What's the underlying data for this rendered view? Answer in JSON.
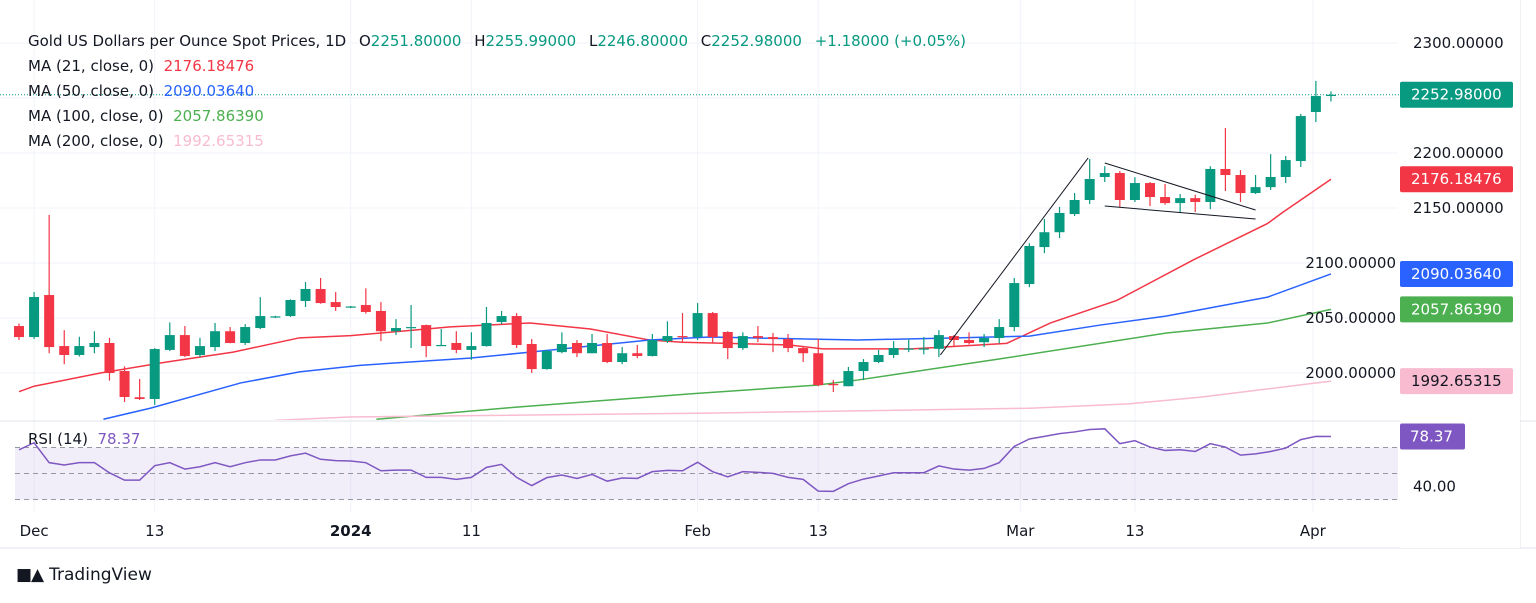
{
  "header": {
    "symbol": "Gold US Dollars per Ounce Spot Prices, 1D",
    "open_label": "O",
    "open": "2251.80000",
    "high_label": "H",
    "high": "2255.99000",
    "low_label": "L",
    "low": "2246.80000",
    "close_label": "C",
    "close": "2252.98000",
    "change": "+1.18000 (+0.05%)"
  },
  "indicators": [
    {
      "label": "MA (21, close, 0)",
      "value": "2176.18476",
      "color": "#f23645"
    },
    {
      "label": "MA (50, close, 0)",
      "value": "2090.03640",
      "color": "#2962ff"
    },
    {
      "label": "MA (100, close, 0)",
      "value": "2057.86390",
      "color": "#4caf50"
    },
    {
      "label": "MA (200, close, 0)",
      "value": "1992.65315",
      "color": "#f8bbd0"
    }
  ],
  "rsi": {
    "label": "RSI (14)",
    "value": "78.37",
    "color": "#7e57c2"
  },
  "price_tags": [
    {
      "text": "2252.98000",
      "value": 2252.98,
      "bg": "#089981",
      "fg": "#ffffff"
    },
    {
      "text": "2176.18476",
      "value": 2176.18476,
      "bg": "#f23645",
      "fg": "#ffffff"
    },
    {
      "text": "2090.03640",
      "value": 2090.0364,
      "bg": "#2962ff",
      "fg": "#ffffff"
    },
    {
      "text": "2057.86390",
      "value": 2057.8639,
      "bg": "#4caf50",
      "fg": "#ffffff"
    },
    {
      "text": "1992.65315",
      "value": 1992.65315,
      "bg": "#f8bbd0",
      "fg": "#131722"
    }
  ],
  "rsi_tag": {
    "text": "78.37",
    "value": 78.37,
    "bg": "#7e57c2"
  },
  "footer": {
    "brand": "TradingView",
    "logo_text": "TV"
  },
  "chart_data": {
    "type": "candlestick",
    "title": "Gold US Dollars per Ounce Spot Prices, 1D",
    "ylim": [
      1957.3,
      2339.1
    ],
    "grid": true,
    "colors": {
      "up": "#089981",
      "down": "#f23645",
      "last_price_line": "#089981"
    },
    "y_ticks": [
      {
        "value": 2300,
        "label": "2300.00000"
      },
      {
        "value": 2250,
        "label": ""
      },
      {
        "value": 2200,
        "label": "2200.00000"
      },
      {
        "value": 2150,
        "label": "2150.00000"
      },
      {
        "value": 2100,
        "label": "2100.00000"
      },
      {
        "value": 2050,
        "label": "2050.00000"
      },
      {
        "value": 2000,
        "label": "2000.00000"
      }
    ],
    "x_ticks": [
      {
        "bar": 1,
        "label": "Dec",
        "bold": false
      },
      {
        "bar": 9,
        "label": "13",
        "bold": false
      },
      {
        "bar": 22,
        "label": "2024",
        "bold": true
      },
      {
        "bar": 30,
        "label": "11",
        "bold": false
      },
      {
        "bar": 45,
        "label": "Feb",
        "bold": false
      },
      {
        "bar": 53,
        "label": "13",
        "bold": false
      },
      {
        "bar": 66.4,
        "label": "Mar",
        "bold": false
      },
      {
        "bar": 74,
        "label": "13",
        "bold": false
      },
      {
        "bar": 85.8,
        "label": "Apr",
        "bold": false
      }
    ],
    "ohlc_columns": [
      "open",
      "high",
      "low",
      "close"
    ],
    "candles": [
      [
        2042.7,
        2045,
        2030,
        2032.7
      ],
      [
        2032.7,
        2073.6,
        2031,
        2069.1
      ],
      [
        2070.9,
        2143.6,
        2018,
        2023.6
      ],
      [
        2024.5,
        2039,
        2008,
        2016.4
      ],
      [
        2016.4,
        2033,
        2015,
        2024.5
      ],
      [
        2023.6,
        2038,
        2018,
        2027.3
      ],
      [
        2027.3,
        2032,
        1993,
        2000
      ],
      [
        2001.8,
        2006,
        1973.6,
        1978.2
      ],
      [
        1978,
        1994.5,
        1975.5,
        1976.4
      ],
      [
        1976.4,
        2022.7,
        1971,
        2021.8
      ],
      [
        2021,
        2046,
        2020,
        2034.5
      ],
      [
        2034.5,
        2042.7,
        2014.5,
        2015.5
      ],
      [
        2016.4,
        2032,
        2014.5,
        2024.5
      ],
      [
        2023.6,
        2045.5,
        2020,
        2038
      ],
      [
        2038,
        2041.8,
        2027,
        2027.3
      ],
      [
        2027.3,
        2044.5,
        2025.5,
        2041.8
      ],
      [
        2040.9,
        2069,
        2040,
        2051.8
      ],
      [
        2050.9,
        2052,
        2050,
        2051.5
      ],
      [
        2051.8,
        2067,
        2051,
        2066.4
      ],
      [
        2065.5,
        2082.7,
        2060,
        2076.4
      ],
      [
        2076.4,
        2086.4,
        2063,
        2063.6
      ],
      [
        2064.5,
        2073.6,
        2056.4,
        2060
      ],
      [
        2060,
        2061,
        2059,
        2060.5
      ],
      [
        2061.8,
        2077,
        2054,
        2055.5
      ],
      [
        2056.4,
        2064.5,
        2029,
        2038
      ],
      [
        2038,
        2049,
        2034.5,
        2040.9
      ],
      [
        2041.8,
        2061.8,
        2022.7,
        2041.8
      ],
      [
        2043.6,
        2044,
        2014.5,
        2024.5
      ],
      [
        2025.5,
        2040,
        2025,
        2025.5
      ],
      [
        2027.3,
        2038,
        2018,
        2021
      ],
      [
        2021,
        2037,
        2012,
        2024.5
      ],
      [
        2024.5,
        2060,
        2024,
        2045.5
      ],
      [
        2046.4,
        2056.4,
        2044.5,
        2051.8
      ],
      [
        2051.8,
        2054.5,
        2022.7,
        2025.5
      ],
      [
        2026.4,
        2030.9,
        2000,
        2003.6
      ],
      [
        2003.6,
        2021,
        2003,
        2020
      ],
      [
        2019,
        2037,
        2018,
        2026.4
      ],
      [
        2027.3,
        2030,
        2014.5,
        2018
      ],
      [
        2018,
        2035.5,
        2018,
        2027.3
      ],
      [
        2027.3,
        2035.5,
        2009,
        2010
      ],
      [
        2010,
        2023.6,
        2008,
        2018
      ],
      [
        2018,
        2025.5,
        2013.6,
        2015.5
      ],
      [
        2015.5,
        2035.5,
        2015,
        2030
      ],
      [
        2029,
        2047,
        2027.3,
        2033.6
      ],
      [
        2033.6,
        2054.5,
        2028,
        2032.7
      ],
      [
        2032.7,
        2063.6,
        2030,
        2054.5
      ],
      [
        2054.5,
        2055.5,
        2027,
        2032.7
      ],
      [
        2037.3,
        2038,
        2012.7,
        2022.7
      ],
      [
        2022.7,
        2037,
        2021,
        2033.6
      ],
      [
        2033.6,
        2042.7,
        2028,
        2032
      ],
      [
        2032.7,
        2036.4,
        2019,
        2030.9
      ],
      [
        2030.9,
        2035.5,
        2019,
        2022.7
      ],
      [
        2022.7,
        2024.5,
        2010,
        2018
      ],
      [
        2018,
        2031,
        1988,
        1989
      ],
      [
        1990,
        1993.6,
        1982.7,
        1989
      ],
      [
        1988,
        2005.5,
        1988,
        2001.8
      ],
      [
        2001.8,
        2012.7,
        1993.6,
        2010
      ],
      [
        2010,
        2021,
        2009,
        2016.4
      ],
      [
        2016.4,
        2029,
        2013.6,
        2022.7
      ],
      [
        2022,
        2031,
        2019,
        2022.3
      ],
      [
        2022,
        2032.7,
        2017,
        2022.3
      ],
      [
        2022,
        2039,
        2014.5,
        2034.5
      ],
      [
        2033.6,
        2034.5,
        2023.6,
        2030
      ],
      [
        2030,
        2037,
        2026,
        2027.3
      ],
      [
        2028,
        2035.5,
        2023.6,
        2031.8
      ],
      [
        2031.8,
        2049,
        2027,
        2041.8
      ],
      [
        2041.8,
        2086.4,
        2038,
        2081.8
      ],
      [
        2080.9,
        2118,
        2078,
        2115.5
      ],
      [
        2114.5,
        2140,
        2109,
        2128
      ],
      [
        2128,
        2151,
        2122.7,
        2145.5
      ],
      [
        2144.5,
        2163.6,
        2142.7,
        2157.3
      ],
      [
        2157.3,
        2194.5,
        2153.6,
        2176.4
      ],
      [
        2178.2,
        2188,
        2173.6,
        2181.8
      ],
      [
        2181.8,
        2183.6,
        2151,
        2157.3
      ],
      [
        2157.3,
        2178,
        2155.5,
        2172.7
      ],
      [
        2172.7,
        2173.6,
        2151.8,
        2160
      ],
      [
        2160,
        2171.8,
        2153,
        2154.5
      ],
      [
        2154.5,
        2162.7,
        2145.5,
        2159
      ],
      [
        2159,
        2162,
        2146.4,
        2155.5
      ],
      [
        2155.5,
        2188,
        2149,
        2185.5
      ],
      [
        2185.5,
        2222.7,
        2165.5,
        2180
      ],
      [
        2180,
        2184.5,
        2155.5,
        2163.6
      ],
      [
        2163.6,
        2180,
        2162.7,
        2169
      ],
      [
        2169,
        2199,
        2166.4,
        2178.2
      ],
      [
        2178.2,
        2197.3,
        2172.7,
        2193.6
      ],
      [
        2192.7,
        2235.5,
        2187.3,
        2233.6
      ],
      [
        2237.3,
        2265.5,
        2228.2,
        2251.8
      ],
      [
        2251.8,
        2255.99,
        2246.8,
        2252.98
      ]
    ],
    "moving_averages": [
      {
        "name": "MA (21, close, 0)",
        "color": "#f23645",
        "points": [
          [
            0,
            1983
          ],
          [
            1,
            1988
          ],
          [
            5.4,
            2000
          ],
          [
            9.8,
            2010
          ],
          [
            14.2,
            2019
          ],
          [
            18.6,
            2032
          ],
          [
            22,
            2034
          ],
          [
            28.6,
            2042
          ],
          [
            33.9,
            2045.5
          ],
          [
            37.9,
            2040
          ],
          [
            41.8,
            2030
          ],
          [
            44,
            2028
          ],
          [
            51.1,
            2025.5
          ],
          [
            53.3,
            2022
          ],
          [
            59.2,
            2022
          ],
          [
            65.5,
            2027
          ],
          [
            68.4,
            2045.5
          ],
          [
            72.8,
            2066
          ],
          [
            77.9,
            2103
          ],
          [
            82.8,
            2136
          ],
          [
            83.8,
            2146
          ],
          [
            87,
            2176.18
          ]
        ]
      },
      {
        "name": "MA (50, close, 0)",
        "color": "#2962ff",
        "points": [
          [
            5.6,
            1958
          ],
          [
            8.7,
            1968
          ],
          [
            14.7,
            1991
          ],
          [
            18.6,
            2001
          ],
          [
            22.6,
            2007
          ],
          [
            29.9,
            2013.6
          ],
          [
            33.9,
            2019
          ],
          [
            41.8,
            2030
          ],
          [
            45.8,
            2032.7
          ],
          [
            55.6,
            2030
          ],
          [
            62.2,
            2032
          ],
          [
            67,
            2033.6
          ],
          [
            71.7,
            2043.6
          ],
          [
            76.1,
            2051.8
          ],
          [
            82.8,
            2069
          ],
          [
            87,
            2090.04
          ]
        ]
      },
      {
        "name": "MA (100, close, 0)",
        "color": "#4caf50",
        "points": [
          [
            23.7,
            1958
          ],
          [
            33,
            1969
          ],
          [
            44.5,
            1981
          ],
          [
            52.9,
            1989
          ],
          [
            55.6,
            1993.6
          ],
          [
            65.1,
            2013
          ],
          [
            76.1,
            2036.4
          ],
          [
            82.8,
            2045.5
          ],
          [
            87,
            2057.86
          ]
        ]
      },
      {
        "name": "MA (200, close, 0)",
        "color": "#f8bbd0",
        "points": [
          [
            17,
            1957
          ],
          [
            21.9,
            1960
          ],
          [
            45.8,
            1963.6
          ],
          [
            67,
            1968
          ],
          [
            73.6,
            1972
          ],
          [
            78.3,
            1978
          ],
          [
            87,
            1992.65
          ]
        ]
      }
    ],
    "drawings": [
      {
        "name": "flagpole-line",
        "points": [
          [
            61.1,
            2016.4
          ],
          [
            70.9,
            2195.5
          ]
        ]
      },
      {
        "name": "flag-upper-line",
        "points": [
          [
            72,
            2190.9
          ],
          [
            82,
            2148.2
          ]
        ]
      },
      {
        "name": "flag-lower-line",
        "points": [
          [
            72,
            2151.8
          ],
          [
            82,
            2140
          ]
        ]
      }
    ],
    "rsi_panel": {
      "name": "RSI (14)",
      "ylim": [
        23.5,
        90.3
      ],
      "levels": [
        70,
        50,
        30
      ],
      "band": [
        30,
        70
      ],
      "y_ticks": [
        {
          "value": 40,
          "label": "40.00"
        }
      ],
      "values": [
        68.2,
        73.6,
        58.3,
        56.5,
        58.3,
        58.3,
        50.5,
        44.9,
        44.9,
        56,
        58.3,
        53.4,
        55.2,
        58.3,
        55.2,
        58.3,
        60.4,
        60.4,
        63.5,
        65.6,
        60.9,
        59.9,
        59.6,
        58.3,
        52.1,
        52.6,
        52.6,
        47,
        47,
        45.5,
        47,
        54.7,
        57,
        47,
        40.7,
        46.8,
        48.8,
        46.2,
        49.3,
        44.1,
        46.5,
        46.2,
        51.4,
        52.4,
        52.1,
        58.6,
        51.4,
        47.4,
        51.4,
        50.9,
        50.1,
        47,
        45.5,
        36.5,
        36.3,
        42.2,
        45.7,
        48.1,
        50.6,
        50.6,
        50.6,
        55.8,
        53.4,
        52.6,
        53.9,
        58.3,
        70.8,
        76.5,
        78.5,
        80.6,
        81.9,
        83.8,
        84.3,
        72.9,
        75.2,
        70.3,
        67.7,
        68.2,
        66.9,
        72.9,
        70.3,
        64.1,
        65.1,
        66.9,
        69.5,
        76,
        78.5,
        78.37
      ]
    }
  }
}
